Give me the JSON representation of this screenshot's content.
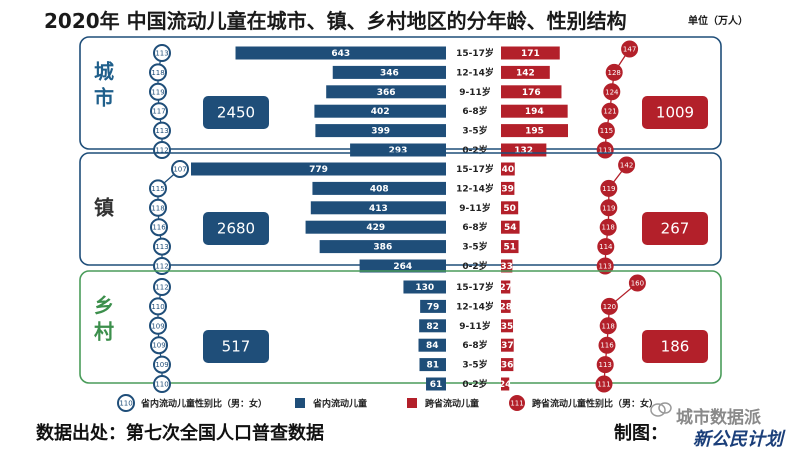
{
  "title": "2020年 中国流动儿童在城市、镇、乡村地区的分年龄、性别结构",
  "unit": "单位（万人）",
  "footer": {
    "source": "数据出处：第七次全国人口普查数据",
    "maker": "制图：",
    "watermark": "城市数据派",
    "plan": "新公民计划"
  },
  "colors": {
    "intra": "#1f4e79",
    "inter": "#b3202a",
    "frame": "#1f4e79",
    "village_frame": "#4a9c5a",
    "village_text": "#3c8f4c",
    "town_text": "#333333",
    "city_text": "#1f5f8b"
  },
  "chart_data": {
    "type": "bar",
    "categories": [
      "15-17岁",
      "12-14岁",
      "9-11岁",
      "6-8岁",
      "3-5岁",
      "0-2岁"
    ],
    "legend": [
      "省内流动儿童性别比（男：女）",
      "省内流动儿童",
      "跨省流动儿童",
      "跨省流动儿童性别比（男：女）"
    ],
    "legend_sample_values": [
      110,
      111
    ],
    "panels": [
      {
        "name": "城市",
        "intra_total": 2450,
        "inter_total": 1009,
        "intra": [
          643,
          346,
          366,
          402,
          399,
          293
        ],
        "inter": [
          171,
          142,
          176,
          194,
          195,
          132
        ],
        "intra_sex_ratio": [
          113,
          118,
          119,
          117,
          113,
          112
        ],
        "inter_sex_ratio": [
          147,
          128,
          124,
          121,
          115,
          113
        ]
      },
      {
        "name": "镇",
        "intra_total": 2680,
        "inter_total": 267,
        "intra": [
          779,
          408,
          413,
          429,
          386,
          264
        ],
        "inter": [
          40,
          39,
          50,
          54,
          51,
          33
        ],
        "intra_sex_ratio": [
          107,
          115,
          118,
          116,
          113,
          112
        ],
        "inter_sex_ratio": [
          142,
          119,
          119,
          118,
          114,
          113
        ]
      },
      {
        "name": "乡村",
        "intra_total": 517,
        "inter_total": 186,
        "intra": [
          130,
          79,
          82,
          84,
          81,
          61
        ],
        "inter": [
          27,
          28,
          35,
          37,
          36,
          24
        ],
        "intra_sex_ratio": [
          112,
          110,
          109,
          109,
          109,
          110
        ],
        "inter_sex_ratio": [
          160,
          120,
          118,
          116,
          113,
          111
        ]
      }
    ]
  }
}
